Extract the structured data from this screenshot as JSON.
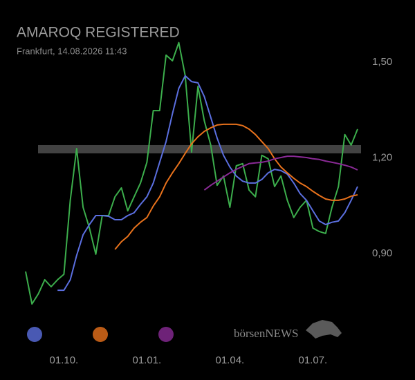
{
  "chart_data": {
    "type": "line",
    "title": "AMAROQ REGISTERED",
    "subtitle": "Frankfurt, 14.08.2026 11:43",
    "watermark": "börsenNEWS",
    "categories": [
      null,
      null,
      null,
      null,
      null,
      null,
      "01.10.",
      null,
      null,
      null,
      null,
      null,
      null,
      null,
      null,
      null,
      null,
      null,
      null,
      "01.01.",
      null,
      null,
      null,
      null,
      null,
      null,
      null,
      null,
      null,
      null,
      null,
      null,
      "01.04.",
      null,
      null,
      null,
      null,
      null,
      null,
      null,
      null,
      null,
      null,
      null,
      null,
      "01.07.",
      null,
      null,
      null,
      null,
      null,
      null,
      null
    ],
    "ylim": [
      0.677,
      1.608
    ],
    "yticks": [
      {
        "value": 0.9,
        "label": "0,90"
      },
      {
        "value": 1.2,
        "label": "1,20"
      },
      {
        "value": 1.5,
        "label": "1,50"
      }
    ],
    "reference_line": 1.227,
    "series": [
      {
        "color": "#3cae4c",
        "legend": false,
        "values": [
          0.844,
          0.742,
          0.774,
          0.818,
          0.796,
          0.818,
          0.835,
          1.067,
          1.229,
          1.045,
          0.98,
          0.898,
          1.019,
          1.019,
          1.078,
          1.106,
          1.034,
          1.078,
          1.121,
          1.186,
          1.348,
          1.348,
          1.522,
          1.504,
          1.561,
          1.457,
          1.218,
          1.424,
          1.316,
          1.24,
          1.114,
          1.143,
          1.045,
          1.175,
          1.182,
          1.099,
          1.078,
          1.208,
          1.197,
          1.11,
          1.143,
          1.067,
          1.013,
          1.045,
          1.067,
          0.98,
          0.969,
          0.963,
          1.045,
          1.11,
          1.273,
          1.24,
          1.29
        ]
      },
      {
        "color": "#5b6fe0",
        "legend": true,
        "values": [
          null,
          null,
          null,
          null,
          null,
          0.785,
          0.785,
          0.818,
          0.894,
          0.959,
          0.991,
          1.019,
          1.019,
          1.017,
          1.006,
          1.006,
          1.019,
          1.028,
          1.054,
          1.078,
          1.121,
          1.186,
          1.251,
          1.338,
          1.418,
          1.457,
          1.439,
          1.435,
          1.392,
          1.327,
          1.262,
          1.208,
          1.171,
          1.143,
          1.127,
          1.121,
          1.121,
          1.132,
          1.153,
          1.164,
          1.16,
          1.149,
          1.121,
          1.088,
          1.067,
          1.034,
          1.002,
          0.991,
          0.998,
          1.002,
          1.028,
          1.067,
          1.11
        ]
      },
      {
        "color": "#e8721c",
        "legend": true,
        "values": [
          null,
          null,
          null,
          null,
          null,
          null,
          null,
          null,
          null,
          null,
          null,
          null,
          null,
          null,
          0.913,
          0.937,
          0.954,
          0.98,
          0.998,
          1.013,
          1.049,
          1.078,
          1.121,
          1.153,
          1.182,
          1.214,
          1.244,
          1.266,
          1.283,
          1.294,
          1.303,
          1.305,
          1.305,
          1.305,
          1.301,
          1.29,
          1.273,
          1.251,
          1.229,
          1.197,
          1.171,
          1.153,
          1.136,
          1.121,
          1.11,
          1.095,
          1.082,
          1.071,
          1.067,
          1.067,
          1.071,
          1.08,
          1.084
        ]
      },
      {
        "color": "#8a2a96",
        "legend": true,
        "values": [
          null,
          null,
          null,
          null,
          null,
          null,
          null,
          null,
          null,
          null,
          null,
          null,
          null,
          null,
          null,
          null,
          null,
          null,
          null,
          null,
          null,
          null,
          null,
          null,
          null,
          null,
          null,
          null,
          1.099,
          1.114,
          1.127,
          1.14,
          1.153,
          1.164,
          1.173,
          1.182,
          1.184,
          1.186,
          1.19,
          1.197,
          1.201,
          1.205,
          1.205,
          1.203,
          1.201,
          1.197,
          1.195,
          1.19,
          1.186,
          1.182,
          1.177,
          1.171,
          1.162
        ]
      }
    ]
  }
}
